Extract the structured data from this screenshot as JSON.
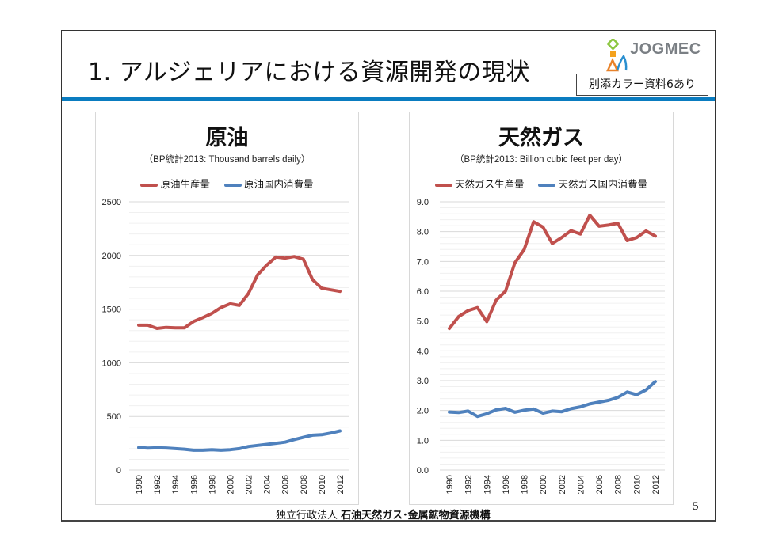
{
  "slide": {
    "title": "1. アルジェリアにおける資源開発の現状",
    "logo_text": "JOGMEC",
    "badge": "別添カラー資料6あり",
    "footer_prefix": "独立行政法人",
    "footer_org": "石油天然ガス･金属鉱物資源機構",
    "page_number": "5",
    "accent_color": "#0a7cc0"
  },
  "chart_data": [
    {
      "type": "line",
      "title": "原油",
      "subtitle": "（BP統計2013: Thousand barrels daily）",
      "xlabel": "",
      "ylabel": "",
      "ylim": [
        0,
        2500
      ],
      "yticks": [
        0,
        500,
        1000,
        1500,
        2000,
        2500
      ],
      "ytick_labels": [
        "0",
        "500",
        "1000",
        "1500",
        "2000",
        "2500"
      ],
      "minor_gridlines": 5,
      "grid": true,
      "legend_position": "top",
      "x": [
        1990,
        1991,
        1992,
        1993,
        1994,
        1995,
        1996,
        1997,
        1998,
        1999,
        2000,
        2001,
        2002,
        2003,
        2004,
        2005,
        2006,
        2007,
        2008,
        2009,
        2010,
        2011,
        2012
      ],
      "xtick_labels": [
        "1990",
        "1992",
        "1994",
        "1996",
        "1998",
        "2000",
        "2002",
        "2004",
        "2006",
        "2008",
        "2010",
        "2012"
      ],
      "series": [
        {
          "name": "原油生産量",
          "color": "#c0504d",
          "values": [
            1350,
            1350,
            1320,
            1330,
            1325,
            1325,
            1385,
            1420,
            1460,
            1515,
            1550,
            1535,
            1645,
            1820,
            1910,
            1985,
            1975,
            1990,
            1965,
            1775,
            1695,
            1680,
            1665
          ]
        },
        {
          "name": "原油国内消費量",
          "color": "#4f81bd",
          "values": [
            210,
            205,
            207,
            206,
            200,
            195,
            185,
            185,
            190,
            185,
            190,
            200,
            220,
            230,
            240,
            250,
            260,
            285,
            305,
            325,
            330,
            345,
            365
          ]
        }
      ]
    },
    {
      "type": "line",
      "title": "天然ガス",
      "subtitle": "（BP統計2013: Billion cubic feet per day）",
      "xlabel": "",
      "ylabel": "",
      "ylim": [
        0,
        9
      ],
      "yticks": [
        0,
        1,
        2,
        3,
        4,
        5,
        6,
        7,
        8,
        9
      ],
      "ytick_labels": [
        "0.0",
        "1.0",
        "2.0",
        "3.0",
        "4.0",
        "5.0",
        "6.0",
        "7.0",
        "8.0",
        "9.0"
      ],
      "minor_gridlines": 5,
      "grid": true,
      "legend_position": "top",
      "x": [
        1990,
        1991,
        1992,
        1993,
        1994,
        1995,
        1996,
        1997,
        1998,
        1999,
        2000,
        2001,
        2002,
        2003,
        2004,
        2005,
        2006,
        2007,
        2008,
        2009,
        2010,
        2011,
        2012
      ],
      "xtick_labels": [
        "1990",
        "1992",
        "1994",
        "1996",
        "1998",
        "2000",
        "2002",
        "2004",
        "2006",
        "2008",
        "2010",
        "2012"
      ],
      "series": [
        {
          "name": "天然ガス生産量",
          "color": "#c0504d",
          "values": [
            4.75,
            5.15,
            5.35,
            5.45,
            4.98,
            5.7,
            6.0,
            6.95,
            7.4,
            8.33,
            8.15,
            7.6,
            7.8,
            8.03,
            7.92,
            8.55,
            8.18,
            8.22,
            8.28,
            7.7,
            7.8,
            8.02,
            7.85
          ]
        },
        {
          "name": "天然ガス国内消費量",
          "color": "#4f81bd",
          "values": [
            1.95,
            1.93,
            1.98,
            1.8,
            1.89,
            2.02,
            2.07,
            1.94,
            2.01,
            2.05,
            1.91,
            1.98,
            1.96,
            2.06,
            2.12,
            2.22,
            2.28,
            2.34,
            2.44,
            2.62,
            2.53,
            2.69,
            2.97
          ]
        }
      ]
    }
  ]
}
